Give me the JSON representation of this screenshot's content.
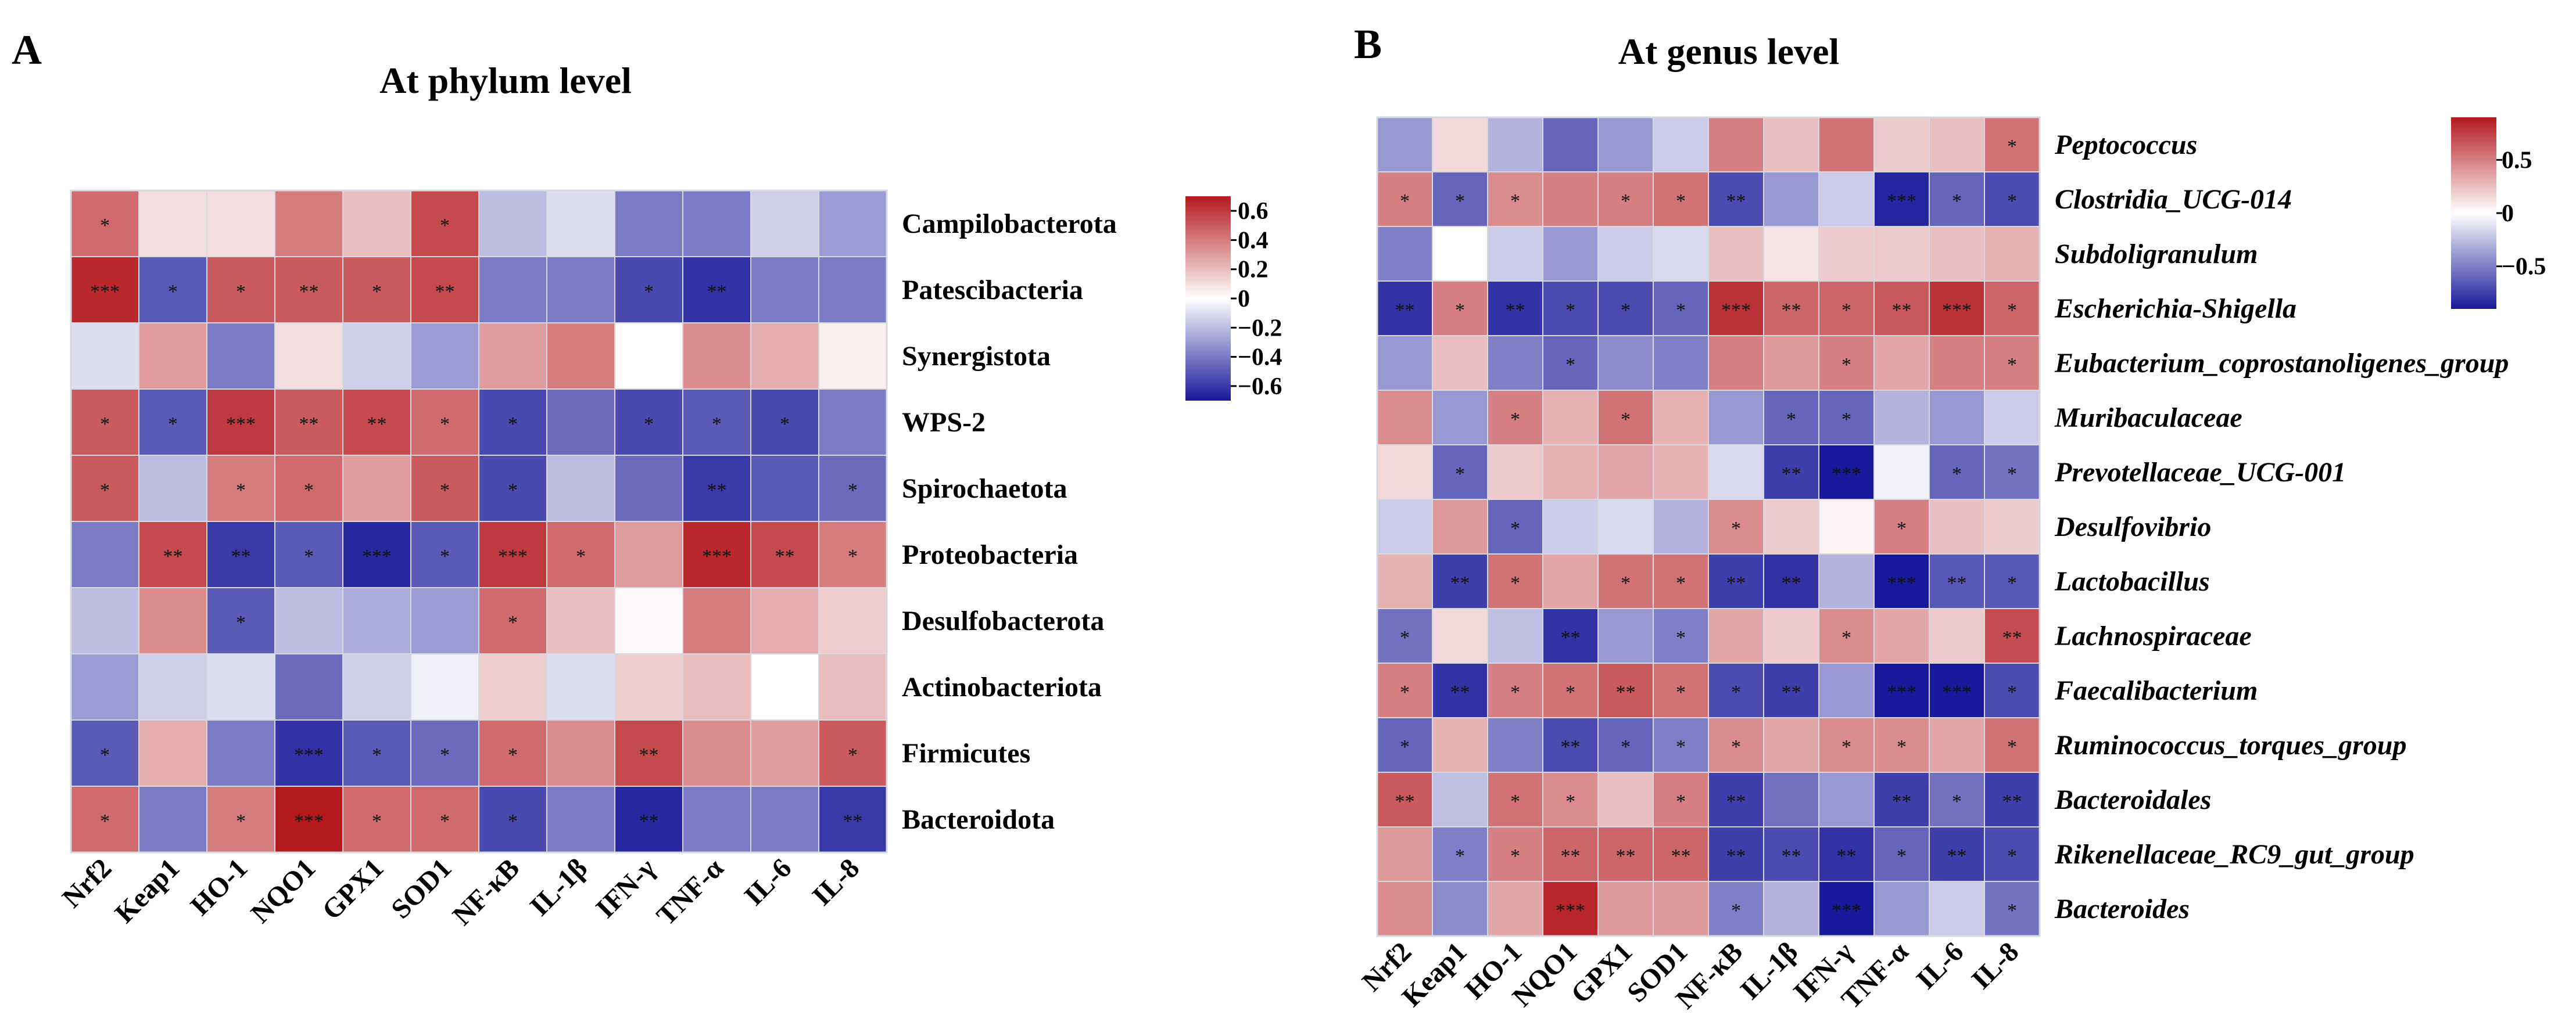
{
  "colors": {
    "low": "#18189a",
    "mid": "#ffffff",
    "high": "#b4191e",
    "cell_border": "#d8d8e0"
  },
  "chart_data": [
    {
      "type": "heatmap",
      "panel_letter": "A",
      "title": "At  phylum level",
      "rows": [
        "Campilobacterota",
        "Patescibacteria",
        "Synergistota",
        "WPS-2",
        "Spirochaetota",
        "Proteobacteria",
        "Desulfobacterota",
        "Actinobacteriota",
        "Firmicutes",
        "Bacteroidota"
      ],
      "row_italic": false,
      "columns": [
        "Nrf2",
        "Keap1",
        "HO-1",
        "NQO1",
        "GPX1",
        "SOD1",
        "NF-κB",
        "IL-1β",
        "IFN-γ",
        "TNF-α",
        "IL-6",
        "IL-8"
      ],
      "values": [
        [
          0.45,
          0.1,
          0.1,
          0.4,
          0.2,
          0.55,
          -0.2,
          -0.1,
          -0.4,
          -0.4,
          -0.15,
          -0.3
        ],
        [
          0.65,
          -0.5,
          0.5,
          0.5,
          0.5,
          0.55,
          -0.4,
          -0.4,
          -0.55,
          -0.62,
          -0.4,
          -0.4
        ],
        [
          -0.1,
          0.3,
          -0.4,
          0.1,
          -0.15,
          -0.3,
          0.3,
          0.4,
          0.0,
          0.35,
          0.25,
          0.05
        ],
        [
          0.5,
          -0.5,
          0.6,
          0.5,
          0.55,
          0.45,
          -0.55,
          -0.45,
          -0.55,
          -0.5,
          -0.55,
          -0.4
        ],
        [
          0.5,
          -0.2,
          0.4,
          0.45,
          0.3,
          0.5,
          -0.55,
          -0.2,
          -0.45,
          -0.6,
          -0.5,
          -0.45
        ],
        [
          -0.4,
          0.55,
          -0.6,
          -0.5,
          -0.65,
          -0.5,
          0.6,
          0.45,
          0.3,
          0.65,
          0.55,
          0.4
        ],
        [
          -0.2,
          0.35,
          -0.5,
          -0.2,
          -0.25,
          -0.3,
          0.45,
          0.2,
          0.02,
          0.4,
          0.25,
          0.15
        ],
        [
          -0.3,
          -0.15,
          -0.1,
          -0.45,
          -0.15,
          -0.05,
          0.15,
          -0.1,
          0.15,
          0.2,
          0.0,
          0.2
        ],
        [
          -0.5,
          0.25,
          -0.4,
          -0.62,
          -0.5,
          -0.45,
          0.45,
          0.35,
          0.55,
          0.35,
          0.3,
          0.5
        ],
        [
          0.45,
          -0.4,
          0.4,
          0.7,
          0.45,
          0.45,
          -0.55,
          -0.4,
          -0.65,
          -0.4,
          -0.4,
          -0.6
        ]
      ],
      "stars": [
        [
          "*",
          "",
          "",
          "",
          "",
          "*",
          "",
          "",
          "",
          "",
          "",
          ""
        ],
        [
          "***",
          "*",
          "*",
          "**",
          "*",
          "**",
          "",
          "",
          "*",
          "**",
          "",
          ""
        ],
        [
          "",
          "",
          "",
          "",
          "",
          "",
          "",
          "",
          "",
          "",
          "",
          ""
        ],
        [
          "*",
          "*",
          "***",
          "**",
          "**",
          "*",
          "*",
          "",
          "*",
          "*",
          "*",
          ""
        ],
        [
          "*",
          "",
          "*",
          "*",
          "",
          "*",
          "*",
          "",
          "",
          "**",
          "",
          "*"
        ],
        [
          "",
          "**",
          "**",
          "*",
          "***",
          "*",
          "***",
          "*",
          "",
          "***",
          "**",
          "*"
        ],
        [
          "",
          "",
          "*",
          "",
          "",
          "",
          "*",
          "",
          "",
          "",
          "",
          ""
        ],
        [
          "",
          "",
          "",
          "",
          "",
          "",
          "",
          "",
          "",
          "",
          "",
          ""
        ],
        [
          "*",
          "",
          "",
          "***",
          "*",
          "*",
          "*",
          "",
          "**",
          "",
          "",
          "*"
        ],
        [
          "*",
          "",
          "*",
          "***",
          "*",
          "*",
          "*",
          "",
          "**",
          "",
          "",
          "**"
        ]
      ],
      "legend": {
        "range": [
          -0.7,
          0.7
        ],
        "ticks": [
          0.6,
          0.4,
          0.2,
          0,
          -0.2,
          -0.4,
          -0.6
        ],
        "tick_labels": [
          "0.6",
          "0.4",
          "0.2",
          "0",
          "−0.2",
          "−0.4",
          "−0.6"
        ]
      }
    },
    {
      "type": "heatmap",
      "panel_letter": "B",
      "title": "At genus level",
      "rows": [
        "Peptococcus",
        "Clostridia_UCG-014",
        "Subdoligranulum",
        "Escherichia-Shigella",
        "Eubacterium_coprostanoligenes_group",
        "Muribaculaceae",
        "Prevotellaceae_UCG-001",
        "Desulfovibrio",
        "Lactobacillus",
        "Lachnospiraceae",
        "Faecalibacterium",
        "Ruminococcus_torques_group",
        "Bacteroidales",
        "Rikenellaceae_RC9_gut_group",
        "Bacteroides"
      ],
      "row_italic": true,
      "columns": [
        "Nrf2",
        "Keap1",
        "HO-1",
        "NQO1",
        "GPX1",
        "SOD1",
        "NF-κB",
        "IL-1β",
        "IFN-γ",
        "TNF-α",
        "IL-6",
        "IL-8"
      ],
      "values": [
        [
          -0.4,
          0.15,
          -0.3,
          -0.6,
          -0.4,
          -0.2,
          0.5,
          0.25,
          0.55,
          0.2,
          0.25,
          0.55
        ],
        [
          0.5,
          -0.6,
          0.45,
          0.5,
          0.5,
          0.55,
          -0.7,
          -0.4,
          -0.2,
          -0.85,
          -0.6,
          -0.7
        ],
        [
          -0.5,
          0.0,
          -0.2,
          -0.4,
          -0.2,
          -0.15,
          0.25,
          0.1,
          0.2,
          0.2,
          0.25,
          0.3
        ],
        [
          -0.8,
          0.5,
          -0.8,
          -0.7,
          -0.7,
          -0.6,
          0.8,
          0.6,
          0.6,
          0.65,
          0.8,
          0.6
        ],
        [
          -0.4,
          0.25,
          -0.5,
          -0.6,
          -0.45,
          -0.5,
          0.5,
          0.4,
          0.5,
          0.35,
          0.5,
          0.5
        ],
        [
          0.45,
          -0.4,
          0.5,
          0.3,
          0.55,
          0.3,
          -0.4,
          -0.6,
          -0.6,
          -0.3,
          -0.4,
          -0.2
        ],
        [
          0.15,
          -0.6,
          0.2,
          0.3,
          0.35,
          0.3,
          -0.15,
          -0.75,
          -0.9,
          -0.05,
          -0.6,
          -0.55
        ],
        [
          -0.2,
          0.4,
          -0.6,
          -0.2,
          -0.15,
          -0.3,
          0.45,
          0.2,
          0.05,
          0.5,
          0.25,
          0.2
        ],
        [
          0.3,
          -0.75,
          0.55,
          0.35,
          0.55,
          0.55,
          -0.75,
          -0.8,
          -0.3,
          -0.9,
          -0.65,
          -0.65
        ],
        [
          -0.55,
          0.15,
          -0.25,
          -0.8,
          -0.4,
          -0.5,
          0.35,
          0.2,
          0.45,
          0.35,
          0.2,
          0.7
        ],
        [
          0.5,
          -0.8,
          0.5,
          0.55,
          0.65,
          0.55,
          -0.7,
          -0.75,
          -0.4,
          -0.9,
          -0.9,
          -0.7
        ],
        [
          -0.6,
          0.3,
          -0.5,
          -0.7,
          -0.6,
          -0.5,
          0.45,
          0.35,
          0.45,
          0.45,
          0.35,
          0.55
        ],
        [
          0.65,
          -0.25,
          0.55,
          0.45,
          0.25,
          0.5,
          -0.75,
          -0.55,
          -0.4,
          -0.75,
          -0.55,
          -0.75
        ],
        [
          0.4,
          -0.5,
          0.5,
          0.6,
          0.6,
          0.6,
          -0.75,
          -0.7,
          -0.8,
          -0.6,
          -0.75,
          -0.7
        ],
        [
          0.45,
          -0.45,
          0.35,
          0.85,
          0.4,
          0.4,
          -0.5,
          -0.3,
          -0.9,
          -0.4,
          -0.2,
          -0.55
        ]
      ],
      "stars": [
        [
          "",
          "",
          "",
          "",
          "",
          "",
          "",
          "",
          "",
          "",
          "",
          "*"
        ],
        [
          "*",
          "*",
          "*",
          "",
          "*",
          "*",
          "**",
          "",
          "",
          "***",
          "*",
          "*"
        ],
        [
          "",
          "",
          "",
          "",
          "",
          "",
          "",
          "",
          "",
          "",
          "",
          ""
        ],
        [
          "**",
          "*",
          "**",
          "*",
          "*",
          "*",
          "***",
          "**",
          "*",
          "**",
          "***",
          "*"
        ],
        [
          "",
          "",
          "",
          "*",
          "",
          "",
          "",
          "",
          "*",
          "",
          "",
          "*"
        ],
        [
          "",
          "",
          "*",
          "",
          "*",
          "",
          "",
          "*",
          "*",
          "",
          "",
          ""
        ],
        [
          "",
          "*",
          "",
          "",
          "",
          "",
          "",
          "**",
          "***",
          "",
          "*",
          "*"
        ],
        [
          "",
          "",
          "*",
          "",
          "",
          "",
          "*",
          "",
          "",
          "*",
          "",
          ""
        ],
        [
          "",
          "**",
          "*",
          "",
          "*",
          "*",
          "**",
          "**",
          "",
          "***",
          "**",
          "*"
        ],
        [
          "*",
          "",
          "",
          "**",
          "",
          "*",
          "",
          "",
          "*",
          "",
          "",
          "**"
        ],
        [
          "*",
          "**",
          "*",
          "*",
          "**",
          "*",
          "*",
          "**",
          "",
          "***",
          "***",
          "*"
        ],
        [
          "*",
          "",
          "",
          "**",
          "*",
          "*",
          "*",
          "",
          "*",
          "*",
          "",
          "*"
        ],
        [
          "**",
          "",
          "*",
          "*",
          "",
          "*",
          "**",
          "",
          "",
          "**",
          "*",
          "**"
        ],
        [
          "",
          "*",
          "*",
          "**",
          "**",
          "**",
          "**",
          "**",
          "**",
          "*",
          "**",
          "*"
        ],
        [
          "",
          "",
          "",
          "***",
          "",
          "",
          "*",
          "",
          "***",
          "",
          "",
          "*"
        ]
      ],
      "legend": {
        "range": [
          -0.9,
          0.9
        ],
        "ticks": [
          0.5,
          0,
          -0.5
        ],
        "tick_labels": [
          "0.5",
          "0",
          "−0.5"
        ]
      }
    }
  ]
}
